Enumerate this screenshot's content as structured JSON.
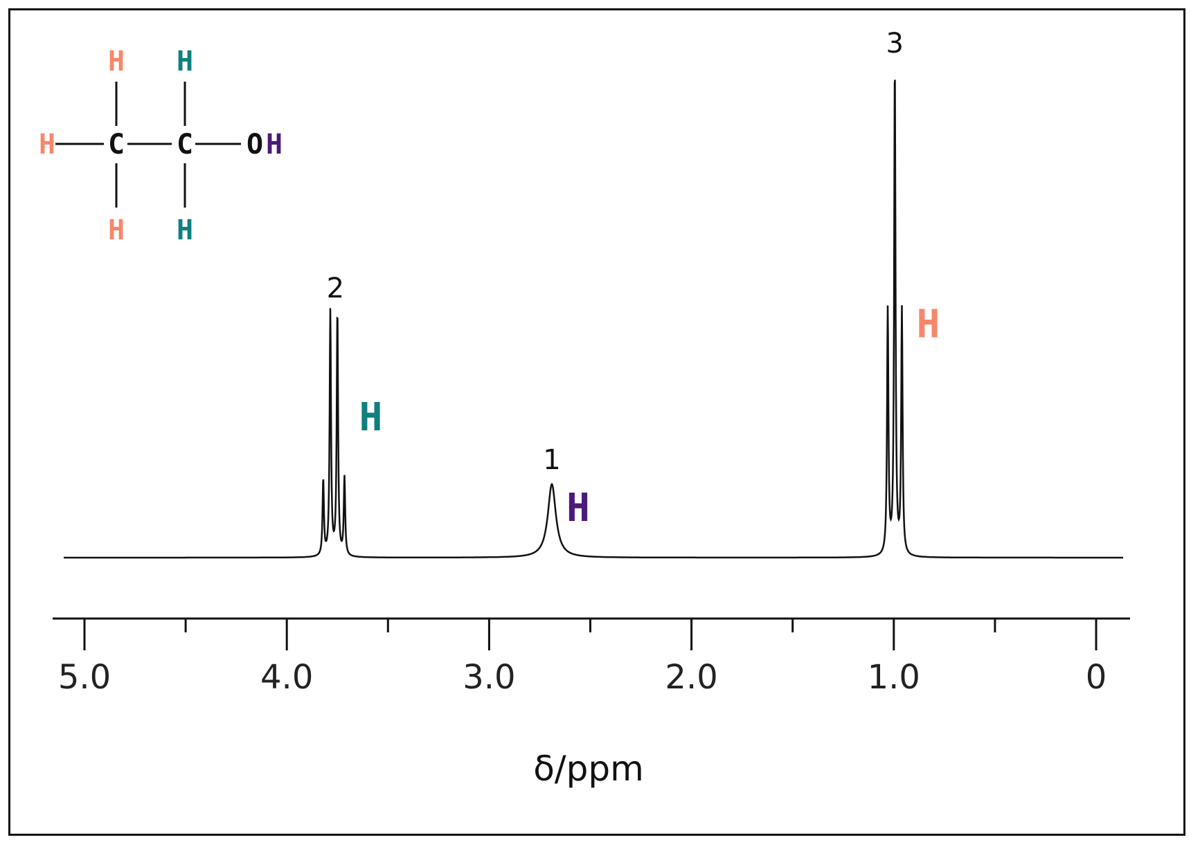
{
  "chart_data": {
    "type": "line",
    "xlabel": "δ/ppm",
    "xlim": [
      5.1,
      -0.15
    ],
    "x_ticks_major": [
      "5.0",
      "4.0",
      "3.0",
      "2.0",
      "1.0",
      "0"
    ],
    "peaks": [
      {
        "id": "peak-2",
        "integration": "2",
        "center": 3.76,
        "multiplicity": "quartet",
        "color": "#0f7f7f",
        "lines": [
          {
            "x": 3.82,
            "h": 0.31
          },
          {
            "x": 3.785,
            "h": 1.0
          },
          {
            "x": 3.75,
            "h": 1.0
          },
          {
            "x": 3.715,
            "h": 0.32
          }
        ]
      },
      {
        "id": "peak-1",
        "integration": "1",
        "center": 2.69,
        "multiplicity": "singlet",
        "color": "#4b1a7a",
        "lines": [
          {
            "x": 2.69,
            "h": 0.3
          }
        ]
      },
      {
        "id": "peak-3",
        "integration": "3",
        "center": 0.995,
        "multiplicity": "triplet",
        "color": "#f5886b",
        "lines": [
          {
            "x": 1.03,
            "h": 1.0
          },
          {
            "x": 0.995,
            "h": 2.0
          },
          {
            "x": 0.96,
            "h": 1.0
          }
        ]
      }
    ],
    "structure": {
      "atoms": [
        "H",
        "H",
        "H",
        "C",
        "C",
        "O",
        "H",
        "H",
        "H"
      ],
      "hydroxyl": "OH"
    }
  },
  "colors": {
    "ch3": "#f5886b",
    "ch2": "#0f7f7f",
    "oh": "#4b1a7a"
  }
}
